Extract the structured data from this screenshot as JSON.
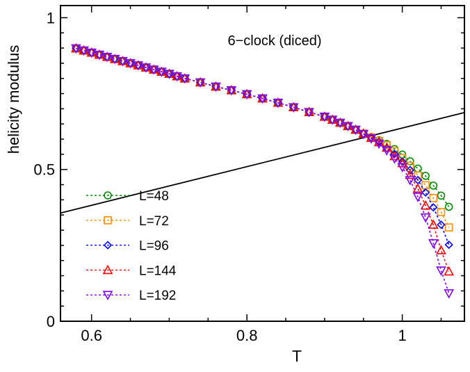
{
  "chart_data": {
    "type": "line",
    "title": "6−clock (diced)",
    "xlabel": "T",
    "ylabel": "helicity modulus",
    "xlim": [
      0.56,
      1.08
    ],
    "ylim": [
      0,
      1.04
    ],
    "xticks": [
      0.6,
      0.8,
      1
    ],
    "xtick_labels": [
      "0.6",
      "0.8",
      "1"
    ],
    "yticks": [
      0,
      0.5,
      1
    ],
    "ytick_labels": [
      "0",
      "0.5",
      "1"
    ],
    "grid": false,
    "legend_position": "left",
    "x": [
      0.58,
      0.59,
      0.6,
      0.61,
      0.62,
      0.63,
      0.64,
      0.65,
      0.66,
      0.67,
      0.68,
      0.69,
      0.7,
      0.71,
      0.72,
      0.74,
      0.76,
      0.78,
      0.8,
      0.82,
      0.84,
      0.86,
      0.88,
      0.9,
      0.91,
      0.92,
      0.93,
      0.94,
      0.95,
      0.96,
      0.97,
      0.98,
      0.99,
      1.0,
      1.01,
      1.02,
      1.03,
      1.04,
      1.05,
      1.06
    ],
    "series": [
      {
        "name": "L=48",
        "marker": "circle",
        "color": "#008c00",
        "values": [
          0.899,
          0.892,
          0.885,
          0.878,
          0.871,
          0.864,
          0.857,
          0.85,
          0.843,
          0.836,
          0.829,
          0.822,
          0.815,
          0.807,
          0.8,
          0.787,
          0.773,
          0.761,
          0.748,
          0.734,
          0.72,
          0.705,
          0.689,
          0.674,
          0.664,
          0.654,
          0.643,
          0.631,
          0.618,
          0.606,
          0.596,
          0.584,
          0.567,
          0.549,
          0.527,
          0.503,
          0.479,
          0.447,
          0.414,
          0.377
        ]
      },
      {
        "name": "L=72",
        "marker": "square",
        "color": "#ff8c00",
        "values": [
          0.899,
          0.892,
          0.885,
          0.878,
          0.871,
          0.864,
          0.857,
          0.85,
          0.843,
          0.836,
          0.829,
          0.822,
          0.815,
          0.807,
          0.8,
          0.787,
          0.773,
          0.761,
          0.748,
          0.734,
          0.72,
          0.705,
          0.689,
          0.674,
          0.664,
          0.654,
          0.643,
          0.631,
          0.618,
          0.606,
          0.594,
          0.58,
          0.56,
          0.538,
          0.512,
          0.48,
          0.448,
          0.406,
          0.36,
          0.309
        ]
      },
      {
        "name": "L=96",
        "marker": "diamond",
        "color": "#0000ff",
        "values": [
          0.899,
          0.892,
          0.885,
          0.878,
          0.871,
          0.864,
          0.857,
          0.85,
          0.843,
          0.836,
          0.829,
          0.822,
          0.815,
          0.807,
          0.8,
          0.787,
          0.773,
          0.761,
          0.748,
          0.734,
          0.72,
          0.705,
          0.689,
          0.674,
          0.664,
          0.654,
          0.643,
          0.631,
          0.618,
          0.605,
          0.592,
          0.57,
          0.551,
          0.526,
          0.498,
          0.465,
          0.424,
          0.375,
          0.318,
          0.252
        ]
      },
      {
        "name": "L=144",
        "marker": "triangle-up",
        "color": "#ff0000",
        "values": [
          0.899,
          0.892,
          0.885,
          0.878,
          0.871,
          0.864,
          0.857,
          0.85,
          0.843,
          0.836,
          0.829,
          0.822,
          0.815,
          0.807,
          0.8,
          0.787,
          0.773,
          0.761,
          0.748,
          0.734,
          0.72,
          0.705,
          0.689,
          0.674,
          0.664,
          0.654,
          0.643,
          0.631,
          0.618,
          0.604,
          0.59,
          0.572,
          0.544,
          0.521,
          0.482,
          0.437,
          0.381,
          0.318,
          0.234,
          0.164
        ]
      },
      {
        "name": "L=192",
        "marker": "triangle-down",
        "color": "#8000ff",
        "values": [
          0.899,
          0.892,
          0.885,
          0.878,
          0.871,
          0.864,
          0.857,
          0.85,
          0.843,
          0.836,
          0.829,
          0.822,
          0.815,
          0.807,
          0.8,
          0.787,
          0.773,
          0.761,
          0.748,
          0.734,
          0.72,
          0.705,
          0.689,
          0.674,
          0.664,
          0.654,
          0.643,
          0.631,
          0.617,
          0.602,
          0.585,
          0.563,
          0.536,
          0.508,
          0.465,
          0.41,
          0.342,
          0.257,
          0.167,
          0.092
        ]
      }
    ],
    "reference_line": {
      "equation": "2T/π",
      "color": "#000000"
    }
  }
}
